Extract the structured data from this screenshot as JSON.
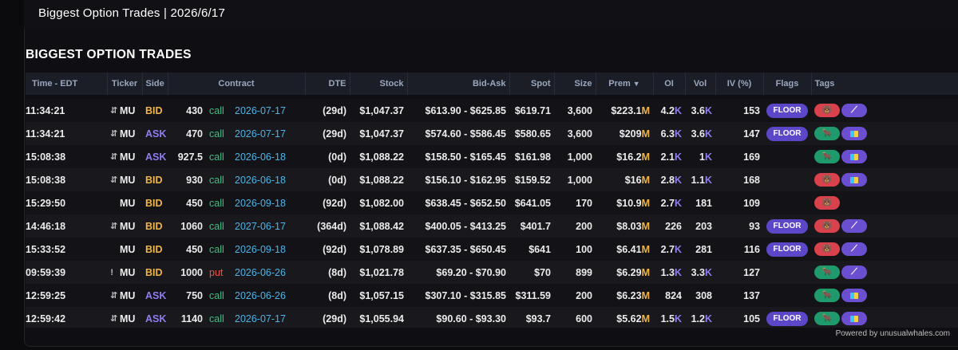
{
  "window": {
    "title": "Biggest Option Trades | 2026/6/17"
  },
  "section": {
    "title": "BIGGEST OPTION TRADES"
  },
  "columns": {
    "time": "Time - EDT",
    "ticker": "Ticker",
    "side": "Side",
    "contract": "Contract",
    "dte": "DTE",
    "stock": "Stock",
    "bid_ask": "Bid-Ask",
    "spot": "Spot",
    "size": "Size",
    "prem": "Prem",
    "oi": "OI",
    "vol": "Vol",
    "iv": "IV (%)",
    "flags": "Flags",
    "tags": "Tags"
  },
  "sort": {
    "column": "prem",
    "direction": "desc",
    "icon": "caret-down-icon"
  },
  "rows": [
    {
      "time": "11:34:21",
      "icon": "⇵",
      "icon_name": "swap-arrows-icon",
      "ticker": "MU",
      "side": "BID",
      "strike": "430",
      "type": "call",
      "expiry": "2026-07-17",
      "dte": "(29d)",
      "stock": "$1,047.37",
      "bid_ask": "$613.90 - $625.85",
      "spot": "$619.71",
      "size": "3,600",
      "prem_num": "$223.1",
      "prem_unit": "M",
      "oi_num": "4.2",
      "oi_unit": "K",
      "vol_num": "3.6",
      "vol_unit": "K",
      "iv": "153",
      "flag": "FLOOR",
      "tags": [
        "bear",
        "sweep"
      ]
    },
    {
      "time": "11:34:21",
      "icon": "⇵",
      "icon_name": "swap-arrows-icon",
      "ticker": "MU",
      "side": "ASK",
      "strike": "470",
      "type": "call",
      "expiry": "2026-07-17",
      "dte": "(29d)",
      "stock": "$1,047.37",
      "bid_ask": "$574.60 - $586.45",
      "spot": "$580.65",
      "size": "3,600",
      "prem_num": "$209",
      "prem_unit": "M",
      "oi_num": "6.3",
      "oi_unit": "K",
      "vol_num": "3.6",
      "vol_unit": "K",
      "iv": "147",
      "flag": "FLOOR",
      "tags": [
        "bull",
        "multi"
      ]
    },
    {
      "time": "15:08:38",
      "icon": "⇵",
      "icon_name": "swap-arrows-icon",
      "ticker": "MU",
      "side": "ASK",
      "strike": "927.5",
      "type": "call",
      "expiry": "2026-06-18",
      "dte": "(0d)",
      "stock": "$1,088.22",
      "bid_ask": "$158.50 - $165.45",
      "spot": "$161.98",
      "size": "1,000",
      "prem_num": "$16.2",
      "prem_unit": "M",
      "oi_num": "2.1",
      "oi_unit": "K",
      "vol_num": "1",
      "vol_unit": "K",
      "iv": "169",
      "flag": "",
      "tags": [
        "bull",
        "multi"
      ]
    },
    {
      "time": "15:08:38",
      "icon": "⇵",
      "icon_name": "swap-arrows-icon",
      "ticker": "MU",
      "side": "BID",
      "strike": "930",
      "type": "call",
      "expiry": "2026-06-18",
      "dte": "(0d)",
      "stock": "$1,088.22",
      "bid_ask": "$156.10 - $162.95",
      "spot": "$159.52",
      "size": "1,000",
      "prem_num": "$16",
      "prem_unit": "M",
      "oi_num": "2.8",
      "oi_unit": "K",
      "vol_num": "1.1",
      "vol_unit": "K",
      "iv": "168",
      "flag": "",
      "tags": [
        "bear",
        "multi"
      ]
    },
    {
      "time": "15:29:50",
      "icon": "",
      "icon_name": "",
      "ticker": "MU",
      "side": "BID",
      "strike": "450",
      "type": "call",
      "expiry": "2026-09-18",
      "dte": "(92d)",
      "stock": "$1,082.00",
      "bid_ask": "$638.45 - $652.50",
      "spot": "$641.05",
      "size": "170",
      "prem_num": "$10.9",
      "prem_unit": "M",
      "oi_num": "2.7",
      "oi_unit": "K",
      "vol_num": "181",
      "vol_unit": "",
      "iv": "109",
      "flag": "",
      "tags": [
        "bear"
      ]
    },
    {
      "time": "14:46:18",
      "icon": "⇵",
      "icon_name": "swap-arrows-icon",
      "ticker": "MU",
      "side": "BID",
      "strike": "1060",
      "type": "call",
      "expiry": "2027-06-17",
      "dte": "(364d)",
      "stock": "$1,088.42",
      "bid_ask": "$400.05 - $413.25",
      "spot": "$401.7",
      "size": "200",
      "prem_num": "$8.03",
      "prem_unit": "M",
      "oi_num": "226",
      "oi_unit": "",
      "vol_num": "203",
      "vol_unit": "",
      "iv": "93",
      "flag": "FLOOR",
      "tags": [
        "bear",
        "sweep"
      ]
    },
    {
      "time": "15:33:52",
      "icon": "",
      "icon_name": "",
      "ticker": "MU",
      "side": "BID",
      "strike": "450",
      "type": "call",
      "expiry": "2026-09-18",
      "dte": "(92d)",
      "stock": "$1,078.89",
      "bid_ask": "$637.35 - $650.45",
      "spot": "$641",
      "size": "100",
      "prem_num": "$6.41",
      "prem_unit": "M",
      "oi_num": "2.7",
      "oi_unit": "K",
      "vol_num": "281",
      "vol_unit": "",
      "iv": "116",
      "flag": "FLOOR",
      "tags": [
        "bear",
        "sweep"
      ]
    },
    {
      "time": "09:59:39",
      "icon": "!",
      "icon_name": "exclamation-icon",
      "ticker": "MU",
      "side": "BID",
      "strike": "1000",
      "type": "put",
      "expiry": "2026-06-26",
      "dte": "(8d)",
      "stock": "$1,021.78",
      "bid_ask": "$69.20 - $70.90",
      "spot": "$70",
      "size": "899",
      "prem_num": "$6.29",
      "prem_unit": "M",
      "oi_num": "1.3",
      "oi_unit": "K",
      "vol_num": "3.3",
      "vol_unit": "K",
      "iv": "127",
      "flag": "",
      "tags": [
        "bull",
        "sweep"
      ]
    },
    {
      "time": "12:59:25",
      "icon": "⇵",
      "icon_name": "swap-arrows-icon",
      "ticker": "MU",
      "side": "ASK",
      "strike": "750",
      "type": "call",
      "expiry": "2026-06-26",
      "dte": "(8d)",
      "stock": "$1,057.15",
      "bid_ask": "$307.10 - $315.85",
      "spot": "$311.59",
      "size": "200",
      "prem_num": "$6.23",
      "prem_unit": "M",
      "oi_num": "824",
      "oi_unit": "",
      "vol_num": "308",
      "vol_unit": "",
      "iv": "137",
      "flag": "",
      "tags": [
        "bull",
        "multi"
      ]
    },
    {
      "time": "12:59:42",
      "icon": "⇵",
      "icon_name": "swap-arrows-icon",
      "ticker": "MU",
      "side": "ASK",
      "strike": "1140",
      "type": "call",
      "expiry": "2026-07-17",
      "dte": "(29d)",
      "stock": "$1,055.94",
      "bid_ask": "$90.60 - $93.30",
      "spot": "$93.7",
      "size": "600",
      "prem_num": "$5.62",
      "prem_unit": "M",
      "oi_num": "1.5",
      "oi_unit": "K",
      "vol_num": "1.2",
      "vol_unit": "K",
      "iv": "105",
      "flag": "FLOOR",
      "tags": [
        "bull",
        "multi"
      ]
    }
  ],
  "tag_styles": {
    "bear": {
      "color": "#d9414c",
      "glyph": "🐻",
      "icon": "bear-icon"
    },
    "bull": {
      "color": "#1f9a6c",
      "glyph": "🐂",
      "icon": "bull-icon"
    },
    "sweep": {
      "color": "#6a4fd0",
      "glyph": "⟋",
      "icon": "sweep-icon"
    },
    "multi": {
      "color": "#6a4fd0",
      "glyph": "",
      "icon": "multi-leg-icon"
    }
  },
  "colors": {
    "bid": "#f0b545",
    "ask": "#8f7df2",
    "call": "#39c281",
    "put": "#f0514b",
    "expiry": "#4db3e6",
    "floor": "#5b47c8"
  },
  "footer": {
    "text": "Powered by unusualwhales.com"
  }
}
